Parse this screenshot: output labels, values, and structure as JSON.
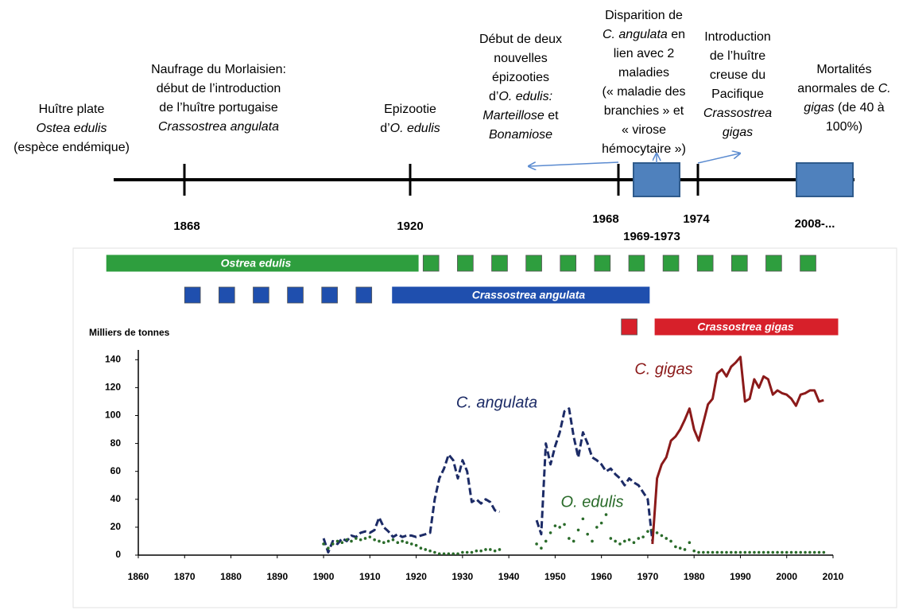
{
  "timeline": {
    "events": [
      {
        "lines": [
          [
            "Huître plate"
          ],
          [
            {
              "text": "Ostea edulis",
              "italic": true
            }
          ],
          [
            "(espèce endémique)"
          ]
        ]
      },
      {
        "date": "1868",
        "lines": [
          [
            "Naufrage du Morlaisien:"
          ],
          [
            "début de l’introduction"
          ],
          [
            "de l’huître portugaise"
          ],
          [
            {
              "text": "Crassostrea angulata",
              "italic": true
            }
          ]
        ]
      },
      {
        "date": "1920",
        "lines": [
          [
            "Epizootie"
          ],
          [
            "d’",
            {
              "text": "O. edulis",
              "italic": true
            }
          ]
        ]
      },
      {
        "date": "1968",
        "lines": [
          [
            "Début de deux"
          ],
          [
            "nouvelles"
          ],
          [
            "épizooties"
          ],
          [
            "d’",
            {
              "text": "O. edulis:",
              "italic": true
            }
          ],
          [
            {
              "text": "Marteillose",
              "italic": true
            },
            " et"
          ],
          [
            {
              "text": "Bonamiose",
              "italic": true
            }
          ]
        ]
      },
      {
        "date": "1969-1973",
        "lines": [
          [
            "Disparition de"
          ],
          [
            {
              "text": "C. angulata",
              "italic": true
            },
            " en"
          ],
          [
            "lien avec 2"
          ],
          [
            "maladies"
          ],
          [
            "(« maladie des"
          ],
          [
            "branchies » et"
          ],
          [
            "« virose"
          ],
          [
            "hémocytaire »)"
          ]
        ]
      },
      {
        "date": "1974",
        "lines": [
          [
            "Introduction"
          ],
          [
            "de l’huître"
          ],
          [
            "creuse du"
          ],
          [
            "Pacifique"
          ],
          [
            {
              "text": "Crassostrea",
              "italic": true
            }
          ],
          [
            {
              "text": "gigas",
              "italic": true
            }
          ]
        ]
      },
      {
        "date": "2008-...",
        "lines": [
          [
            "Mortalités"
          ],
          [
            "anormales de ",
            {
              "text": "C.",
              "italic": true
            }
          ],
          [
            {
              "text": "gigas",
              "italic": true
            },
            " (de 40 à"
          ],
          [
            "100%)"
          ]
        ]
      }
    ]
  },
  "chart_data": {
    "type": "line",
    "ylabel": "Milliers de tonnes",
    "xlim": [
      1860,
      2010
    ],
    "xticks": [
      1860,
      1870,
      1880,
      1890,
      1900,
      1910,
      1920,
      1930,
      1940,
      1950,
      1960,
      1970,
      1980,
      1990,
      2000,
      2010
    ],
    "ylim": [
      0,
      147
    ],
    "yticks": [
      0,
      20,
      40,
      60,
      80,
      100,
      120,
      140
    ],
    "grid": false,
    "presence": [
      {
        "name": "Ostrea edulis",
        "color": "#2e9e3e",
        "solid": [
          1853,
          1920.6
        ],
        "sporadic": [
          1921.5,
          2010
        ]
      },
      {
        "name": "Crassostrea angulata",
        "color": "#1f4fae",
        "solid": [
          1914.7,
          1970.5
        ],
        "sporadic": [
          1870,
          1914
        ]
      },
      {
        "name": "Crassostrea gigas",
        "color": "#d7202a",
        "solid": [
          1971.4,
          2011.2
        ],
        "sporadic": [
          1964.3,
          1968
        ]
      }
    ],
    "series": [
      {
        "name": "C. angulata",
        "color": "#1c2b66",
        "style": "dashed",
        "x": [
          1900,
          1901,
          1902,
          1903,
          1904,
          1905,
          1906,
          1907,
          1908,
          1909,
          1910,
          1911,
          1912,
          1913,
          1914,
          1915,
          1916,
          1917,
          1918,
          1919,
          1920,
          1921,
          1922,
          1923,
          1924,
          1925,
          1926,
          1927,
          1928,
          1929,
          1930,
          1931,
          1932,
          1933,
          1934,
          1935,
          1936,
          1937,
          1938,
          1939,
          1940,
          1941,
          1942,
          1943,
          1944,
          1945,
          1946,
          1947,
          1948,
          1949,
          1950,
          1951,
          1952,
          1953,
          1954,
          1955,
          1956,
          1957,
          1958,
          1959,
          1960,
          1961,
          1962,
          1963,
          1964,
          1965,
          1966,
          1967,
          1968,
          1969,
          1970,
          1971
        ],
        "values": [
          12,
          2,
          10,
          8,
          12,
          10,
          14,
          13,
          16,
          17,
          16,
          18,
          27,
          20,
          17,
          13,
          15,
          13,
          14,
          14,
          13,
          14,
          15,
          16,
          40,
          55,
          62,
          72,
          68,
          55,
          68,
          60,
          38,
          40,
          37,
          40,
          38,
          32,
          31,
          null,
          null,
          null,
          null,
          null,
          null,
          null,
          25,
          15,
          80,
          65,
          78,
          88,
          103,
          105,
          85,
          70,
          88,
          80,
          70,
          68,
          65,
          60,
          62,
          58,
          55,
          50,
          55,
          52,
          50,
          45,
          40,
          10
        ]
      },
      {
        "name": "O. edulis",
        "color": "#2a6b2a",
        "style": "dotted",
        "x": [
          1900,
          1901,
          1902,
          1903,
          1904,
          1905,
          1906,
          1907,
          1908,
          1909,
          1910,
          1911,
          1912,
          1913,
          1914,
          1915,
          1916,
          1917,
          1918,
          1919,
          1920,
          1921,
          1922,
          1923,
          1924,
          1925,
          1926,
          1927,
          1928,
          1929,
          1930,
          1931,
          1932,
          1933,
          1934,
          1935,
          1936,
          1937,
          1938,
          1939,
          1940,
          1941,
          1942,
          1943,
          1944,
          1945,
          1946,
          1947,
          1948,
          1949,
          1950,
          1951,
          1952,
          1953,
          1954,
          1955,
          1956,
          1957,
          1958,
          1959,
          1960,
          1961,
          1962,
          1963,
          1964,
          1965,
          1966,
          1967,
          1968,
          1969,
          1970,
          1971,
          1972,
          1973,
          1974,
          1975,
          1976,
          1977,
          1978,
          1979,
          1980,
          1981,
          1982,
          1983,
          1984,
          1985,
          1986,
          1987,
          1988,
          1989,
          1990,
          1991,
          1992,
          1993,
          1994,
          1995,
          1996,
          1997,
          1998,
          1999,
          2000,
          2001,
          2002,
          2003,
          2004,
          2005,
          2006,
          2007,
          2008
        ],
        "values": [
          8,
          5,
          8,
          10,
          9,
          11,
          10,
          12,
          11,
          12,
          13,
          11,
          10,
          9,
          10,
          11,
          9,
          10,
          9,
          8,
          7,
          5,
          4,
          3,
          2,
          1,
          1,
          1,
          1,
          1,
          2,
          2,
          2,
          3,
          3,
          4,
          4,
          3,
          4,
          null,
          null,
          null,
          null,
          null,
          null,
          null,
          8,
          5,
          10,
          16,
          21,
          20,
          22,
          12,
          10,
          18,
          26,
          15,
          10,
          20,
          23,
          29,
          12,
          10,
          8,
          10,
          11,
          9,
          12,
          13,
          17,
          18,
          16,
          14,
          12,
          10,
          6,
          5,
          4,
          9,
          3,
          2,
          2,
          2,
          2,
          2,
          2,
          2,
          2,
          2,
          2,
          2,
          2,
          2,
          2,
          2,
          2,
          2,
          2,
          2,
          2,
          2,
          2,
          2,
          2,
          2,
          2,
          2,
          2
        ]
      },
      {
        "name": "C. gigas",
        "color": "#8b1a1a",
        "style": "solid",
        "x": [
          1971,
          1972,
          1973,
          1974,
          1975,
          1976,
          1977,
          1978,
          1979,
          1980,
          1981,
          1982,
          1983,
          1984,
          1985,
          1986,
          1987,
          1988,
          1989,
          1990,
          1991,
          1992,
          1993,
          1994,
          1995,
          1996,
          1997,
          1998,
          1999,
          2000,
          2001,
          2002,
          2003,
          2004,
          2005,
          2006,
          2007,
          2008
        ],
        "values": [
          8,
          55,
          65,
          70,
          82,
          85,
          90,
          97,
          105,
          90,
          82,
          95,
          108,
          112,
          130,
          133,
          128,
          135,
          138,
          142,
          110,
          112,
          126,
          120,
          128,
          126,
          115,
          118,
          116,
          115,
          112,
          107,
          115,
          116,
          118,
          118,
          110,
          111
        ]
      }
    ]
  }
}
